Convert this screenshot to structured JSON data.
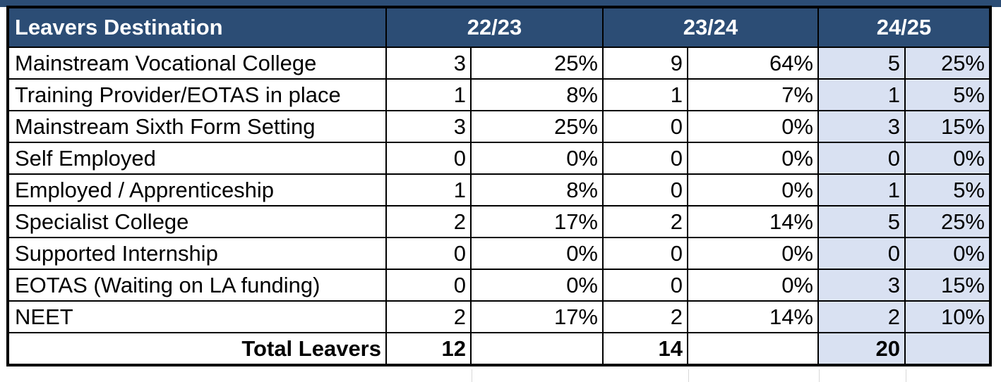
{
  "header": {
    "title": "Leavers Destination",
    "years": [
      "22/23",
      "23/24",
      "24/25"
    ]
  },
  "colors": {
    "header_bg": "#2c4d75",
    "header_text": "#ffffff",
    "highlight_bg": "#d9e1f2"
  },
  "rows": [
    {
      "label": "Mainstream Vocational College",
      "y1": "3",
      "p1": "25%",
      "y2": "9",
      "p2": "64%",
      "y3": "5",
      "p3": "25%"
    },
    {
      "label": "Training Provider/EOTAS in place",
      "y1": "1",
      "p1": "8%",
      "y2": "1",
      "p2": "7%",
      "y3": "1",
      "p3": "5%"
    },
    {
      "label": "Mainstream Sixth Form Setting",
      "y1": "3",
      "p1": "25%",
      "y2": "0",
      "p2": "0%",
      "y3": "3",
      "p3": "15%"
    },
    {
      "label": "Self Employed",
      "y1": "0",
      "p1": "0%",
      "y2": "0",
      "p2": "0%",
      "y3": "0",
      "p3": "0%"
    },
    {
      "label": "Employed / Apprenticeship",
      "y1": "1",
      "p1": "8%",
      "y2": "0",
      "p2": "0%",
      "y3": "1",
      "p3": "5%"
    },
    {
      "label": "Specialist College",
      "y1": "2",
      "p1": "17%",
      "y2": "2",
      "p2": "14%",
      "y3": "5",
      "p3": "25%"
    },
    {
      "label": "Supported Internship",
      "y1": "0",
      "p1": "0%",
      "y2": "0",
      "p2": "0%",
      "y3": "0",
      "p3": "0%"
    },
    {
      "label": "EOTAS (Waiting on LA funding)",
      "y1": "0",
      "p1": "0%",
      "y2": "0",
      "p2": "0%",
      "y3": "3",
      "p3": "15%"
    },
    {
      "label": "NEET",
      "y1": "2",
      "p1": "17%",
      "y2": "2",
      "p2": "14%",
      "y3": "2",
      "p3": "10%"
    }
  ],
  "total": {
    "label": "Total Leavers",
    "y1": "12",
    "y2": "14",
    "y3": "20"
  }
}
